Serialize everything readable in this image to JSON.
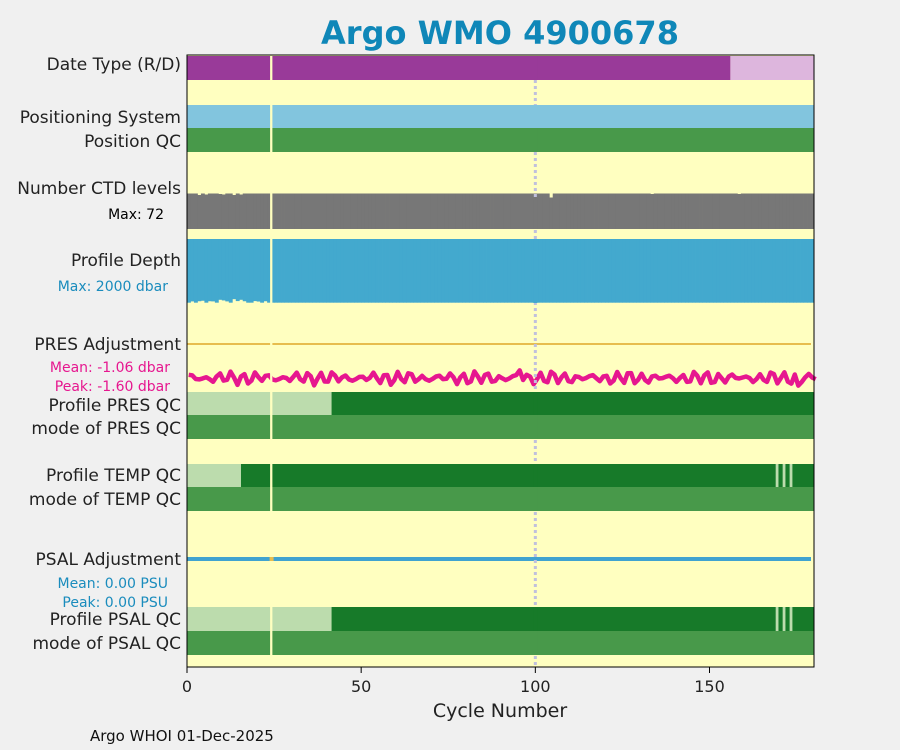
{
  "chart_data": {
    "type": "timeline",
    "title": "Argo WMO 4900678",
    "xlabel": "Cycle Number",
    "xlim": [
      0,
      180
    ],
    "xticks": [
      0,
      50,
      100,
      150
    ],
    "footer": "Argo WHOI 01-Dec-2025",
    "colors": {
      "title": "#0f87b8",
      "background": "#ffffc0",
      "missing_cycle": "#ffffc0",
      "dotted_marker": "#c0c0dd",
      "real_time": "#993a99",
      "delayed": "#ddb6dd",
      "positioning": "#82c5de",
      "qc_good": "#48994a",
      "qc_dark": "#177a29",
      "qc_light": "#bcdcad",
      "ctd": "#777777",
      "depth": "#43a9ce",
      "pres_line": "#e7bd4e",
      "pres_adj": "#e6178f",
      "psal_line": "#40a3d0"
    },
    "missing_cycle": 24,
    "dotted_marker_cycle": 100,
    "rows": {
      "date_type": {
        "label": "Date Type (R/D)",
        "segments": [
          {
            "from": 0,
            "to": 156,
            "code": "R"
          },
          {
            "from": 156,
            "to": 180,
            "code": "D"
          }
        ]
      },
      "positioning_system": {
        "label": "Positioning System",
        "from": 0,
        "to": 180
      },
      "position_qc": {
        "label": "Position QC",
        "from": 0,
        "to": 180
      },
      "ctd_levels": {
        "label": "Number CTD levels",
        "max_label": "Max: 72",
        "max": 72,
        "typical": 71,
        "low_cycles": [
          {
            "cycle": 3,
            "value": 68
          },
          {
            "cycle": 5,
            "value": 69
          },
          {
            "cycle": 9,
            "value": 70
          },
          {
            "cycle": 10,
            "value": 69
          },
          {
            "cycle": 13,
            "value": 68
          },
          {
            "cycle": 15,
            "value": 69
          },
          {
            "cycle": 104,
            "value": 63
          },
          {
            "cycle": 133,
            "value": 70
          },
          {
            "cycle": 158,
            "value": 70
          }
        ]
      },
      "profile_depth": {
        "label": "Profile Depth",
        "max_label": "Max: 2000 dbar",
        "max": 2000,
        "typical": 1990,
        "low_cycles": [
          {
            "cycle": 1,
            "value": 1950
          },
          {
            "cycle": 3,
            "value": 1945
          },
          {
            "cycle": 4,
            "value": 1930
          },
          {
            "cycle": 6,
            "value": 1945
          },
          {
            "cycle": 7,
            "value": 1950
          },
          {
            "cycle": 9,
            "value": 1900
          },
          {
            "cycle": 10,
            "value": 1920
          },
          {
            "cycle": 11,
            "value": 1950
          },
          {
            "cycle": 13,
            "value": 1880
          },
          {
            "cycle": 14,
            "value": 1940
          },
          {
            "cycle": 15,
            "value": 1900
          },
          {
            "cycle": 16,
            "value": 1945
          },
          {
            "cycle": 19,
            "value": 1940
          },
          {
            "cycle": 20,
            "value": 1955
          },
          {
            "cycle": 22,
            "value": 1945
          }
        ]
      },
      "pres_adjustment": {
        "label": "PRES Adjustment",
        "mean_label": "Mean: -1.06 dbar",
        "peak_label": "Peak: -1.60 dbar",
        "mean": -1.06,
        "peak": -1.6
      },
      "profile_pres_qc": {
        "label": "Profile PRES QC",
        "segments": [
          {
            "from": 0,
            "to": 41.5,
            "grade": "B"
          },
          {
            "from": 41.5,
            "to": 180,
            "grade": "A"
          }
        ]
      },
      "mode_pres_qc": {
        "label": "mode of PRES QC",
        "from": 0,
        "to": 180
      },
      "profile_temp_qc": {
        "label": "Profile TEMP QC",
        "segments": [
          {
            "from": 0,
            "to": 15.5,
            "grade": "B"
          },
          {
            "from": 15.5,
            "to": 180,
            "grade": "A"
          }
        ],
        "light_cycles": [
          169,
          171,
          173
        ]
      },
      "mode_temp_qc": {
        "label": "mode of TEMP QC",
        "from": 0,
        "to": 180
      },
      "psal_adjustment": {
        "label": "PSAL Adjustment",
        "mean_label": "Mean: 0.00 PSU",
        "peak_label": "Peak: 0.00 PSU",
        "mean": 0.0,
        "peak": 0.0
      },
      "profile_psal_qc": {
        "label": "Profile PSAL QC",
        "segments": [
          {
            "from": 0,
            "to": 41.5,
            "grade": "B"
          },
          {
            "from": 41.5,
            "to": 180,
            "grade": "A"
          }
        ],
        "light_cycles": [
          169,
          171,
          173
        ]
      },
      "mode_psal_qc": {
        "label": "mode of PSAL QC",
        "from": 0,
        "to": 180
      }
    }
  }
}
